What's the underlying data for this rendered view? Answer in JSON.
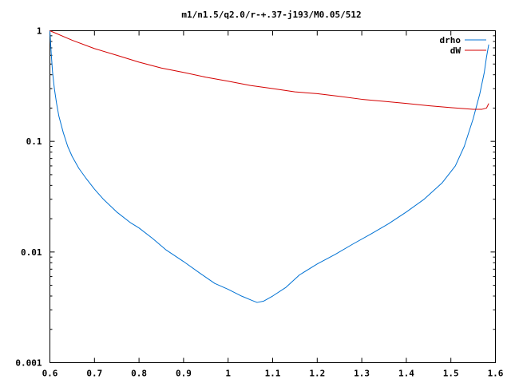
{
  "chart_data": {
    "type": "line",
    "title": "m1/n1.5/q2.0/r-+.37-j193/M0.05/512",
    "xlabel": "",
    "ylabel": "",
    "xlim": [
      0.6,
      1.6
    ],
    "ylim": [
      0.001,
      1
    ],
    "yscale": "log",
    "grid": false,
    "legend_position": "top-right",
    "x_ticks": [
      {
        "value": 0.6,
        "label": "0.6"
      },
      {
        "value": 0.7,
        "label": "0.7"
      },
      {
        "value": 0.8,
        "label": "0.8"
      },
      {
        "value": 0.9,
        "label": "0.9"
      },
      {
        "value": 1.0,
        "label": "1"
      },
      {
        "value": 1.1,
        "label": "1.1"
      },
      {
        "value": 1.2,
        "label": "1.2"
      },
      {
        "value": 1.3,
        "label": "1.3"
      },
      {
        "value": 1.4,
        "label": "1.4"
      },
      {
        "value": 1.5,
        "label": "1.5"
      },
      {
        "value": 1.6,
        "label": "1.6"
      }
    ],
    "y_ticks": [
      {
        "value": 1,
        "label": "1"
      },
      {
        "value": 0.1,
        "label": "0.1"
      },
      {
        "value": 0.01,
        "label": "0.01"
      },
      {
        "value": 0.001,
        "label": "0.001"
      }
    ],
    "series": [
      {
        "name": "drho",
        "color": "#0072d4",
        "x": [
          0.6,
          0.603,
          0.606,
          0.61,
          0.615,
          0.62,
          0.63,
          0.64,
          0.65,
          0.665,
          0.68,
          0.7,
          0.72,
          0.75,
          0.78,
          0.8,
          0.83,
          0.86,
          0.9,
          0.94,
          0.97,
          1.0,
          1.03,
          1.05,
          1.065,
          1.08,
          1.1,
          1.13,
          1.16,
          1.2,
          1.24,
          1.28,
          1.32,
          1.36,
          1.4,
          1.44,
          1.48,
          1.51,
          1.53,
          1.55,
          1.565,
          1.575,
          1.58,
          1.585
        ],
        "y": [
          1.0,
          0.62,
          0.42,
          0.3,
          0.22,
          0.17,
          0.12,
          0.09,
          0.073,
          0.057,
          0.047,
          0.037,
          0.03,
          0.023,
          0.0185,
          0.0165,
          0.0133,
          0.0105,
          0.0082,
          0.0063,
          0.0052,
          0.0046,
          0.004,
          0.0037,
          0.0035,
          0.0036,
          0.004,
          0.0048,
          0.0062,
          0.0078,
          0.0095,
          0.0118,
          0.0145,
          0.018,
          0.023,
          0.03,
          0.042,
          0.06,
          0.09,
          0.16,
          0.27,
          0.42,
          0.58,
          0.75
        ]
      },
      {
        "name": "dW",
        "color": "#d40000",
        "x": [
          0.6,
          0.65,
          0.7,
          0.75,
          0.8,
          0.85,
          0.9,
          0.95,
          1.0,
          1.05,
          1.1,
          1.15,
          1.2,
          1.25,
          1.3,
          1.35,
          1.4,
          1.45,
          1.5,
          1.55,
          1.57,
          1.58,
          1.585
        ],
        "y": [
          1.0,
          0.82,
          0.69,
          0.6,
          0.52,
          0.46,
          0.42,
          0.38,
          0.35,
          0.32,
          0.3,
          0.28,
          0.27,
          0.255,
          0.24,
          0.23,
          0.22,
          0.21,
          0.202,
          0.195,
          0.195,
          0.2,
          0.22
        ]
      }
    ]
  }
}
